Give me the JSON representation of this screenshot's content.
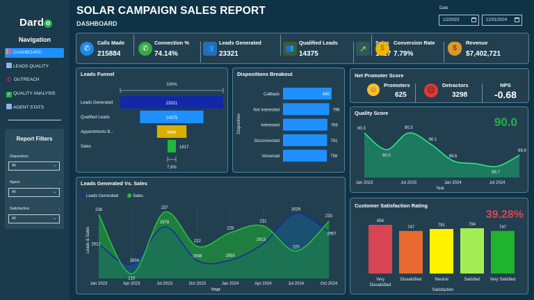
{
  "app": {
    "logo": "Dard",
    "logo_o": "o",
    "title": "SOLAR CAMPAIGN SALES REPORT",
    "subtitle": "DASHBOARD"
  },
  "sidebar": {
    "nav_title": "Navigation",
    "items": [
      {
        "label": "DASHBOARD",
        "icon": "dashboard-icon",
        "active": true
      },
      {
        "label": "LEADS QUALITY",
        "icon": "chart-icon",
        "active": false
      },
      {
        "label": "OUTREACH",
        "icon": "phone-icon",
        "active": false
      },
      {
        "label": "QUALITY ANALYSIS",
        "icon": "check-icon",
        "active": false
      },
      {
        "label": "AGENT STATS",
        "icon": "chart-icon",
        "active": false
      }
    ],
    "filters": {
      "title": "Report Filters",
      "disposition": {
        "label": "Disposition",
        "value": "All"
      },
      "agent": {
        "label": "Agent",
        "value": "All"
      },
      "satisfaction": {
        "label": "Satisfaction",
        "value": "All"
      }
    }
  },
  "date": {
    "label": "Date",
    "start": "1/2/2023",
    "end": "12/31/2024"
  },
  "kpis": [
    {
      "label": "Calls Made",
      "value": "215884",
      "icon": "phone-icon"
    },
    {
      "label": "Connection %",
      "value": "74.14%",
      "icon": "phone-connected-icon"
    },
    {
      "label": "Leads Generated",
      "value": "23321",
      "icon": "people-network-icon"
    },
    {
      "label": "Qualified Leads",
      "value": "14375",
      "icon": "qualified-people-icon"
    },
    {
      "label": "Sales",
      "value": "1817",
      "icon": "growth-hand-icon"
    },
    {
      "label": "Conversion Rate",
      "value": "7.79%",
      "icon": "conversion-coin-icon"
    },
    {
      "label": "Revenue",
      "value": "$7,402,721",
      "icon": "money-bag-icon"
    }
  ],
  "nps": {
    "title": "Net Promoter Score",
    "promoters_label": "Promoters",
    "promoters_value": "625",
    "detractors_label": "Detractors",
    "detractors_value": "3298",
    "nps_label": "NPS",
    "nps_value": "-0.68"
  },
  "chart_data": [
    {
      "id": "leads-funnel",
      "type": "bar",
      "title": "Leads Funnel",
      "categories": [
        "Leads Generated",
        "Qualified Leads",
        "Appointments B...",
        "Sales"
      ],
      "values": [
        23321,
        14375,
        6684,
        1817
      ],
      "labels": [
        "23321",
        "14375",
        "6684",
        "1817"
      ],
      "colors": [
        "#1228a8",
        "#1e90ff",
        "#d9b000",
        "#1fb83a"
      ],
      "top_annotation": "100%",
      "bottom_annotation": "7.8%"
    },
    {
      "id": "dispositions-breakout",
      "type": "bar",
      "title": "Dispositions Breakout",
      "ylabel": "Disposition",
      "categories": [
        "Callback",
        "Not Interested",
        "Interested",
        "Disconnected",
        "Voicemail"
      ],
      "values": [
        840,
        798,
        766,
        761,
        758
      ],
      "labels": [
        "840",
        "798",
        "766",
        "761",
        "758"
      ],
      "color": "#1e90ff"
    },
    {
      "id": "quality-score",
      "type": "area",
      "title": "Quality Score",
      "kpi_value": "90.0",
      "xlabel": "Year",
      "x_ticks": [
        "Jan 2023",
        "Jul 2023",
        "Jan 2024",
        "Jul 2024"
      ],
      "x": [
        0,
        3,
        6,
        9,
        12,
        15,
        18,
        21
      ],
      "values": [
        90.3,
        90.0,
        90.3,
        90.1,
        89.8,
        89.75,
        89.7,
        89.9
      ],
      "labels": [
        "90.3",
        "90.0",
        "90.3",
        "90.1",
        "89.8",
        "",
        "89.7",
        "89.9"
      ],
      "ylim": [
        89.5,
        90.45
      ],
      "color": "#2ee88a"
    },
    {
      "id": "leads-vs-sales",
      "type": "area",
      "title": "Leads Generated Vs. Sales",
      "xlabel": "Year",
      "ylabel": "Leads & Sales",
      "categories": [
        "Jan 2023",
        "Apr 2023",
        "Jul 2023",
        "Oct 2023",
        "Jan 2024",
        "Apr 2024",
        "Jul 2024",
        "Oct 2024"
      ],
      "series": [
        {
          "name": "Leads Generated",
          "values": [
            2912,
            2834,
            2978,
            2848,
            2850,
            2913,
            3029,
            2957
          ],
          "labels": [
            "2912",
            "2834",
            "2978",
            "2848",
            "2850",
            "2913",
            "3029",
            "2957"
          ],
          "color": "#1a2aa0"
        },
        {
          "name": "Sales",
          "values": [
            236,
            210,
            237,
            222,
            228,
            231,
            220,
            233
          ],
          "labels": [
            "236",
            "210",
            "237",
            "222",
            "228",
            "231",
            "220",
            "233"
          ],
          "color": "#2bbf3a"
        }
      ]
    },
    {
      "id": "customer-satisfaction",
      "type": "bar",
      "title": "Customer Satisfaction Rating",
      "kpi_value": "39.28%",
      "xlabel": "Satisfaction",
      "categories": [
        "Very Dissatisfied",
        "Dissatisfied",
        "Neutral",
        "Satisfied",
        "Very Satisfied"
      ],
      "values": [
        854,
        747,
        781,
        794,
        747
      ],
      "labels": [
        "854",
        "747",
        "781",
        "794",
        "747"
      ],
      "colors": [
        "#d94452",
        "#e86a30",
        "#fff200",
        "#a3ee55",
        "#1fb32e"
      ],
      "ylim": [
        0,
        900
      ]
    }
  ]
}
